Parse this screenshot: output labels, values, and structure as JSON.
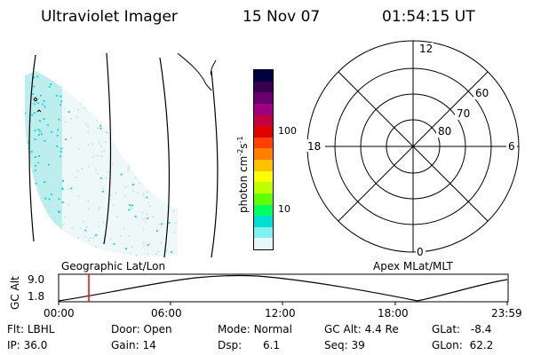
{
  "header": {
    "instrument": "Ultraviolet Imager",
    "date": "15 Nov 07",
    "time": "01:54:15 UT"
  },
  "colorbar": {
    "unit_main": "photon cm",
    "unit_exp1": "-2",
    "unit_mid": "s",
    "unit_exp2": "-1",
    "tick_100": "100",
    "tick_10": "10",
    "colors": [
      "#000040",
      "#3a0050",
      "#6a0070",
      "#a00080",
      "#c00040",
      "#e00000",
      "#ff4000",
      "#ff8000",
      "#ffc000",
      "#ffff00",
      "#c0ff00",
      "#60ff00",
      "#00ff60",
      "#00e0d0",
      "#80f0f0",
      "#e8f8f8"
    ]
  },
  "polar": {
    "mlt_12": "12",
    "mlt_18": "18",
    "mlt_6": "6",
    "mlt_0": "0",
    "lat_60": "60",
    "lat_70": "70",
    "lat_80": "80"
  },
  "timeline": {
    "left_label": "Geographic Lat/Lon",
    "right_label": "Apex MLat/MLT",
    "y_axis_label": "GC Alt",
    "y_top": "9.0",
    "y_bottom": "1.8",
    "x_ticks": [
      "00:00",
      "06:00",
      "12:00",
      "18:00",
      "23:59"
    ],
    "marker_time": "01:54"
  },
  "status": {
    "flt_label": "Flt:",
    "flt_value": "LBHL",
    "door_label": "Door:",
    "door_value": "Open",
    "mode_label": "Mode:",
    "mode_value": "Normal",
    "gcalt_label": "GC Alt:",
    "gcalt_value": "4.4 Re",
    "glat_label": "GLat:",
    "glat_value": "-8.4",
    "ip_label": "IP:",
    "ip_value": "36.0",
    "gain_label": "Gain:",
    "gain_value": "14",
    "dsp_label": "Dsp:",
    "dsp_value": "6.1",
    "seq_label": "Seq:",
    "seq_value": "39",
    "glon_label": "GLon:",
    "glon_value": "62.2"
  }
}
